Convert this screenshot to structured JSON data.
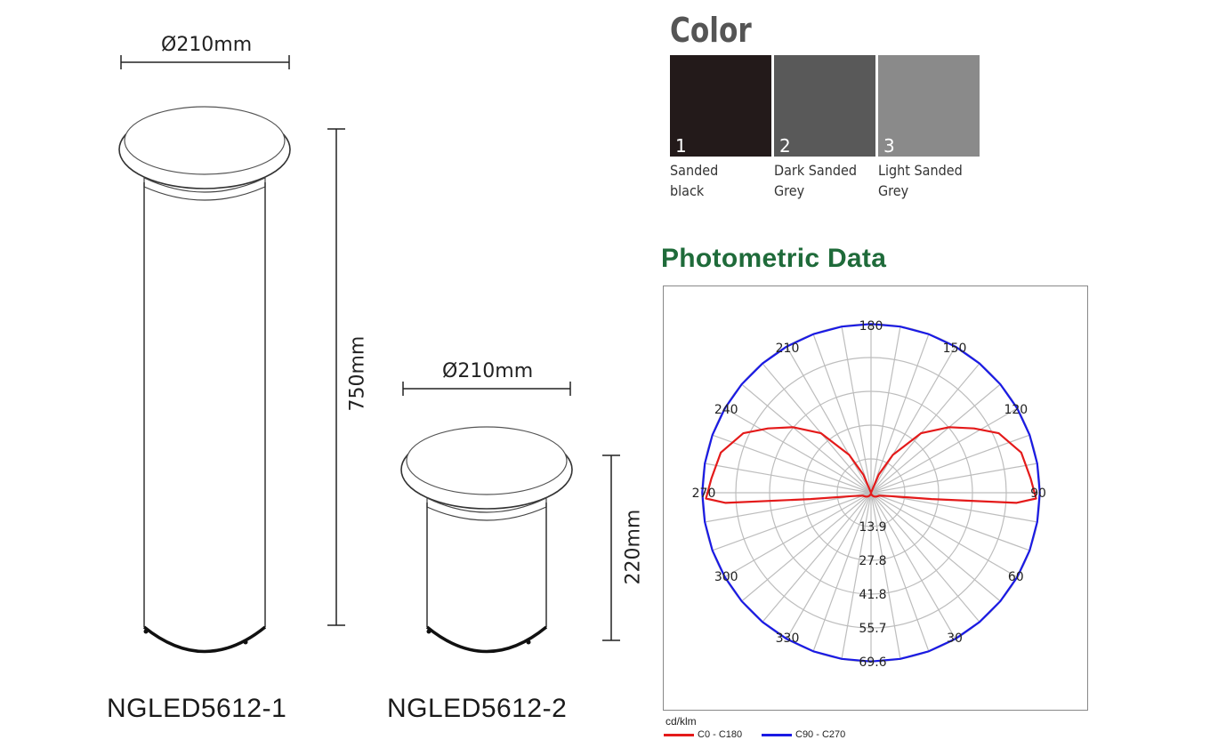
{
  "products": [
    {
      "model": "NGLED5612-1",
      "diameter": "Ø210mm",
      "height": "750mm"
    },
    {
      "model": "NGLED5612-2",
      "diameter": "Ø210mm",
      "height": "220mm"
    }
  ],
  "color_section": {
    "heading": "Color",
    "swatches": [
      {
        "number": "1",
        "label_line1": "Sanded",
        "label_line2": "black",
        "color": "#231a1a"
      },
      {
        "number": "2",
        "label_line1": "Dark Sanded",
        "label_line2": "Grey",
        "color": "#595959"
      },
      {
        "number": "3",
        "label_line1": "Light Sanded",
        "label_line2": "Grey",
        "color": "#8a8a8a"
      }
    ]
  },
  "photometric": {
    "heading": "Photometric Data",
    "chart_data": {
      "type": "polar",
      "unit": "cd/klm",
      "angle_labels": [
        "180",
        "150",
        "120",
        "90",
        "60",
        "30",
        "330",
        "300",
        "270",
        "240",
        "210"
      ],
      "radial_labels": [
        "13.9",
        "27.8",
        "41.8",
        "55.7",
        "69.6"
      ],
      "rmax": 69.6,
      "series": [
        {
          "name": "C0 - C180",
          "color": "#e41a1a",
          "points": [
            [
              0,
              0
            ],
            [
              10,
              0.5
            ],
            [
              20,
              1
            ],
            [
              30,
              1.5
            ],
            [
              40,
              2
            ],
            [
              50,
              2.5
            ],
            [
              60,
              3
            ],
            [
              70,
              3.5
            ],
            [
              80,
              8
            ],
            [
              84,
              25
            ],
            [
              86,
              60
            ],
            [
              88,
              68
            ],
            [
              95,
              66
            ],
            [
              105,
              64
            ],
            [
              115,
              58
            ],
            [
              122,
              50
            ],
            [
              130,
              42
            ],
            [
              140,
              32
            ],
            [
              150,
              18
            ],
            [
              157,
              8
            ],
            [
              160,
              0
            ],
            [
              170,
              0
            ],
            [
              180,
              0
            ],
            [
              190,
              0
            ],
            [
              200,
              0
            ],
            [
              203,
              8
            ],
            [
              210,
              18
            ],
            [
              220,
              32
            ],
            [
              230,
              42
            ],
            [
              238,
              50
            ],
            [
              245,
              58
            ],
            [
              255,
              64
            ],
            [
              265,
              66
            ],
            [
              272,
              68
            ],
            [
              274,
              60
            ],
            [
              276,
              25
            ],
            [
              280,
              8
            ],
            [
              290,
              3.5
            ],
            [
              300,
              3
            ],
            [
              310,
              2.5
            ],
            [
              320,
              2
            ],
            [
              330,
              1.5
            ],
            [
              340,
              1
            ],
            [
              350,
              0.5
            ]
          ]
        },
        {
          "name": "C90 - C270",
          "color": "#1a1ae4",
          "points": [
            [
              0,
              69.5
            ],
            [
              10,
              69.5
            ],
            [
              20,
              69.5
            ],
            [
              30,
              69.5
            ],
            [
              40,
              69.5
            ],
            [
              50,
              69.5
            ],
            [
              60,
              69.5
            ],
            [
              70,
              69.5
            ],
            [
              80,
              69.5
            ],
            [
              90,
              69.5
            ],
            [
              100,
              69.5
            ],
            [
              110,
              69.5
            ],
            [
              120,
              69.5
            ],
            [
              130,
              69.5
            ],
            [
              140,
              69.5
            ],
            [
              150,
              69.5
            ],
            [
              160,
              69.5
            ],
            [
              170,
              69.5
            ],
            [
              180,
              69.5
            ],
            [
              190,
              69.5
            ],
            [
              200,
              69.5
            ],
            [
              210,
              69.5
            ],
            [
              220,
              69.5
            ],
            [
              230,
              69.5
            ],
            [
              240,
              69.5
            ],
            [
              250,
              69.5
            ],
            [
              260,
              69.5
            ],
            [
              270,
              69.5
            ],
            [
              280,
              69.5
            ],
            [
              290,
              69.5
            ],
            [
              300,
              69.5
            ],
            [
              310,
              69.5
            ],
            [
              320,
              69.5
            ],
            [
              330,
              69.5
            ],
            [
              340,
              69.5
            ],
            [
              350,
              69.5
            ]
          ]
        }
      ]
    }
  }
}
